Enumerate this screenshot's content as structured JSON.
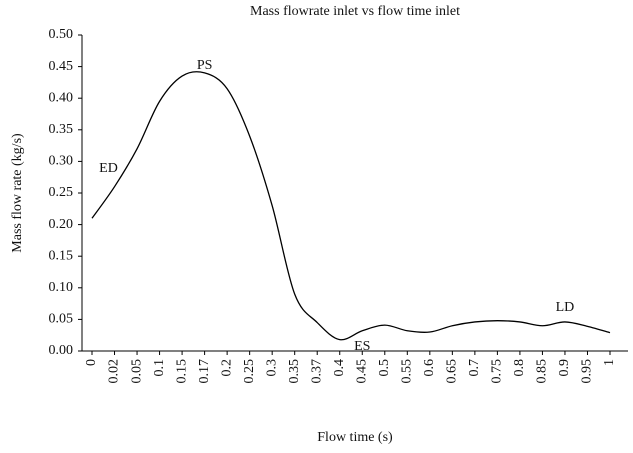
{
  "chart_data": {
    "type": "line",
    "title": "Mass flowrate inlet vs flow time inlet",
    "x_label": "Flow time (s)",
    "y_label": "Mass flow rate (kg/s)",
    "categories": [
      "0",
      "0.02",
      "0.05",
      "0.1",
      "0.15",
      "0.17",
      "0.2",
      "0.25",
      "0.3",
      "0.35",
      "0.37",
      "0.4",
      "0.45",
      "0.5",
      "0.55",
      "0.6",
      "0.65",
      "0.7",
      "0.75",
      "0.8",
      "0.85",
      "0.9",
      "0.95",
      "1"
    ],
    "series": [
      {
        "name": "Mass flow rate",
        "color": "#000000",
        "values": [
          0.21,
          0.26,
          0.32,
          0.395,
          0.435,
          0.44,
          0.415,
          0.34,
          0.23,
          0.09,
          0.045,
          0.018,
          0.032,
          0.041,
          0.032,
          0.03,
          0.04,
          0.046,
          0.048,
          0.046,
          0.04,
          0.046,
          0.039,
          0.029
        ]
      }
    ],
    "ylim": [
      0,
      0.5
    ],
    "yticks": [
      {
        "value": 0,
        "label": "0.00"
      },
      {
        "value": 0.05,
        "label": "0.05"
      },
      {
        "value": 0.1,
        "label": "0.10"
      },
      {
        "value": 0.15,
        "label": "0.15"
      },
      {
        "value": 0.2,
        "label": "0.20"
      },
      {
        "value": 0.25,
        "label": "0.25"
      },
      {
        "value": 0.3,
        "label": "0.30"
      },
      {
        "value": 0.35,
        "label": "0.35"
      },
      {
        "value": 0.4,
        "label": "0.40"
      },
      {
        "value": 0.45,
        "label": "0.45"
      },
      {
        "value": 0.5,
        "label": "0.50"
      }
    ],
    "annotations": [
      {
        "text": "ED",
        "category": "0.02"
      },
      {
        "text": "PS",
        "category": "0.17"
      },
      {
        "text": "ES",
        "category": "0.45"
      },
      {
        "text": "LD",
        "category": "0.9"
      }
    ],
    "grid": false
  }
}
